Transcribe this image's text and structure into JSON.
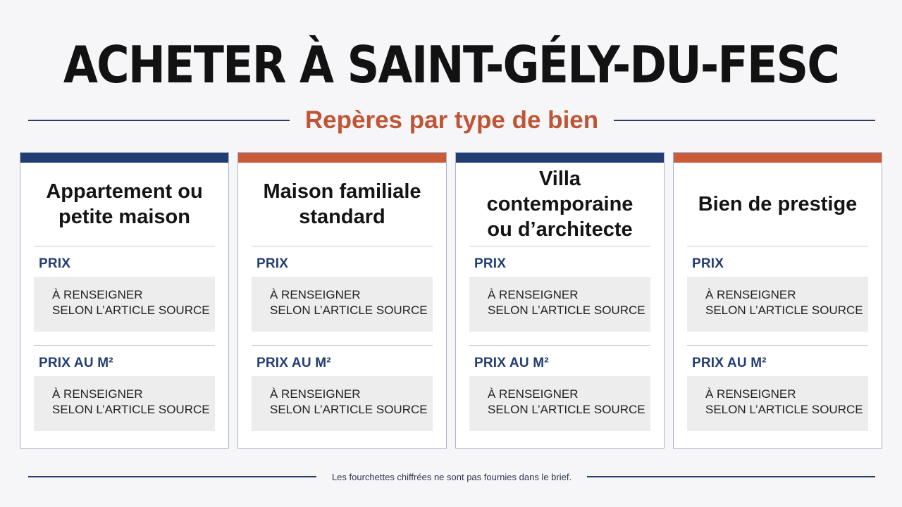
{
  "header": {
    "title": "ACHETER À SAINT-GÉLY-DU-FESC",
    "subtitle": "Repères par type de bien"
  },
  "colors": {
    "navy": "#223d73",
    "orange": "#c95b3a",
    "subtitle": "#bf5535"
  },
  "cards": [
    {
      "accent": "navy",
      "title_line1": "Appartement ou",
      "title_line2": "petite maison",
      "price_label": "PRIX",
      "price_line1": "À RENSEIGNER",
      "price_line2": "SELON L’ARTICLE SOURCE",
      "m2_label": "PRIX AU M²",
      "m2_line1": "À RENSEIGNER",
      "m2_line2": "SELON L’ARTICLE SOURCE"
    },
    {
      "accent": "orange",
      "title_line1": "Maison familiale",
      "title_line2": "standard",
      "price_label": "PRIX",
      "price_line1": "À RENSEIGNER",
      "price_line2": "SELON L’ARTICLE SOURCE",
      "m2_label": "PRIX AU M²",
      "m2_line1": "À RENSEIGNER",
      "m2_line2": "SELON L’ARTICLE SOURCE"
    },
    {
      "accent": "navy",
      "title_line1": "Villa contemporaine",
      "title_line2": "ou d’architecte",
      "price_label": "PRIX",
      "price_line1": "À RENSEIGNER",
      "price_line2": "SELON L’ARTICLE SOURCE",
      "m2_label": "PRIX AU M²",
      "m2_line1": "À RENSEIGNER",
      "m2_line2": "SELON L’ARTICLE SOURCE"
    },
    {
      "accent": "orange",
      "title_line1": "Bien de prestige",
      "title_line2": "",
      "price_label": "PRIX",
      "price_line1": "À RENSEIGNER",
      "price_line2": "SELON L’ARTICLE SOURCE",
      "m2_label": "PRIX AU M²",
      "m2_line1": "À RENSEIGNER",
      "m2_line2": "SELON L’ARTICLE SOURCE"
    }
  ],
  "footer": {
    "note": "Les fourchettes chiffrées ne sont pas fournies dans le brief."
  }
}
